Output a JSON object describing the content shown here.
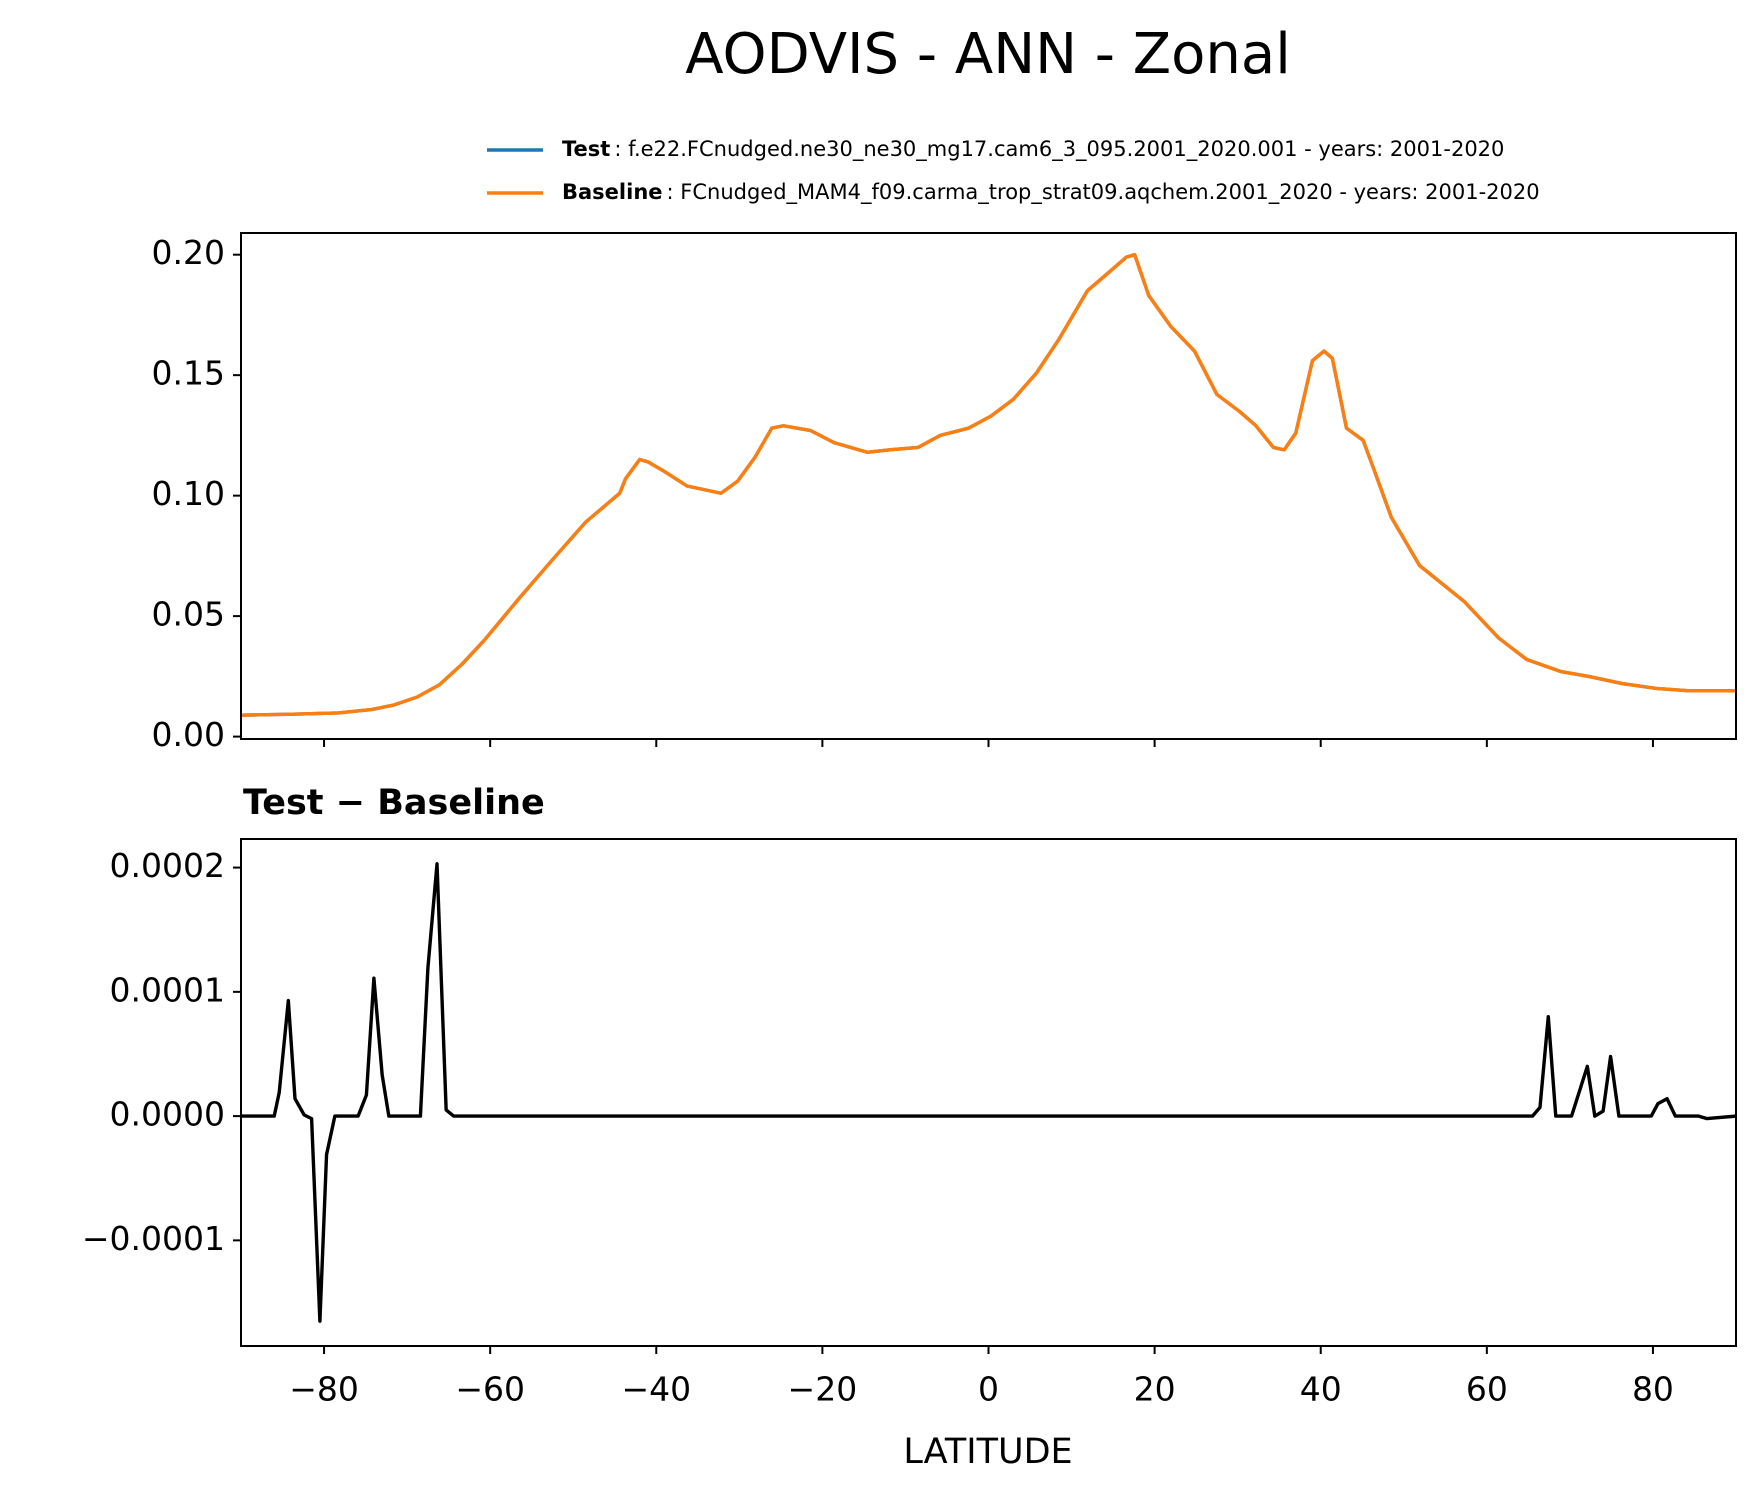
{
  "chart_data": [
    {
      "type": "line",
      "title": "AODVIS - ANN - Zonal",
      "x": [
        -90,
        -83.8,
        -78.3,
        -74.3,
        -71.6,
        -68.8,
        -66.1,
        -63.4,
        -60.7,
        -56.6,
        -52.6,
        -48.5,
        -44.4,
        -43.7,
        -42,
        -41,
        -39,
        -36.3,
        -32.2,
        -30.2,
        -28.1,
        -26.1,
        -24.7,
        -21.4,
        -18.6,
        -14.6,
        -11.9,
        -8.5,
        -5.8,
        -2.4,
        0.3,
        3,
        5.8,
        8.5,
        11.9,
        14.6,
        16.6,
        17.6,
        19.3,
        22,
        24.8,
        27.5,
        30.2,
        32.2,
        34.3,
        35.6,
        37,
        39,
        40.4,
        41.4,
        42.4,
        43.1,
        45.1,
        46.5,
        48.5,
        51.9,
        57.3,
        61.4,
        64.8,
        68.9,
        72.2,
        76.3,
        80.4,
        84.4,
        90
      ],
      "series": [
        {
          "name": "Test",
          "description": ": f.e22.FCnudged.ne30_ne30_mg17.cam6_3_095.2001_2020.001 - years: 2001-2020",
          "color": "#1f77b4",
          "values": [
            0.0089,
            0.0093,
            0.0098,
            0.0112,
            0.0131,
            0.0164,
            0.0215,
            0.03,
            0.04,
            0.057,
            0.073,
            0.089,
            0.101,
            0.107,
            0.115,
            0.114,
            0.11,
            0.104,
            0.101,
            0.106,
            0.116,
            0.128,
            0.129,
            0.127,
            0.122,
            0.118,
            0.119,
            0.12,
            0.125,
            0.128,
            0.133,
            0.14,
            0.151,
            0.165,
            0.185,
            0.193,
            0.199,
            0.2,
            0.183,
            0.17,
            0.16,
            0.142,
            0.135,
            0.129,
            0.12,
            0.119,
            0.126,
            0.156,
            0.16,
            0.157,
            0.14,
            0.128,
            0.123,
            0.11,
            0.091,
            0.071,
            0.056,
            0.041,
            0.032,
            0.027,
            0.025,
            0.022,
            0.02,
            0.019,
            0.019
          ]
        },
        {
          "name": "Baseline",
          "description": ": FCnudged_MAM4_f09.carma_trop_strat09.aqchem.2001_2020 - years: 2001-2020",
          "color": "#ff7f0e",
          "values": [
            0.0089,
            0.0093,
            0.0098,
            0.0112,
            0.0131,
            0.0164,
            0.0215,
            0.03,
            0.04,
            0.057,
            0.073,
            0.089,
            0.101,
            0.107,
            0.115,
            0.114,
            0.11,
            0.104,
            0.101,
            0.106,
            0.116,
            0.128,
            0.129,
            0.127,
            0.122,
            0.118,
            0.119,
            0.12,
            0.125,
            0.128,
            0.133,
            0.14,
            0.151,
            0.165,
            0.185,
            0.193,
            0.199,
            0.2,
            0.183,
            0.17,
            0.16,
            0.142,
            0.135,
            0.129,
            0.12,
            0.119,
            0.126,
            0.156,
            0.16,
            0.157,
            0.14,
            0.128,
            0.123,
            0.11,
            0.091,
            0.071,
            0.056,
            0.041,
            0.032,
            0.027,
            0.025,
            0.022,
            0.02,
            0.019,
            0.019
          ]
        }
      ],
      "xlim": [
        -90,
        90
      ],
      "xticks": [
        -80,
        -60,
        -40,
        -20,
        0,
        20,
        40,
        60,
        80
      ],
      "ylim": [
        -0.001,
        0.209
      ],
      "yticks": [
        {
          "value": 0,
          "label": "0.00"
        },
        0.05,
        {
          "value": 0.1,
          "label": "0.10"
        },
        0.15,
        {
          "value": 0.2,
          "label": "0.20"
        }
      ]
    },
    {
      "type": "line",
      "subtitle": "Test − Baseline",
      "xlabel": "LATITUDE",
      "color": "#000000",
      "x": [
        -90,
        -86,
        -85.4,
        -84.3,
        -83.5,
        -82.4,
        -81.5,
        -80.5,
        -79.7,
        -78.7,
        -75.9,
        -74.9,
        -74,
        -73,
        -72.2,
        -68.4,
        -67.5,
        -66.4,
        -65.3,
        -64.4,
        65.5,
        66.4,
        67.4,
        68.3,
        70.2,
        72.1,
        73,
        74,
        74.9,
        75.9,
        79.8,
        80.6,
        81.7,
        82.7,
        85.5,
        86.5,
        90
      ],
      "values": [
        0,
        0,
        1.9e-05,
        9.3e-05,
        1.4e-05,
        1e-06,
        -2e-06,
        -0.000165,
        -3.1e-05,
        0,
        0,
        1.7e-05,
        0.000111,
        3.3e-05,
        0,
        0,
        0.000119,
        0.000203,
        5e-06,
        0,
        0,
        7e-06,
        8e-05,
        0,
        0,
        4e-05,
        0,
        4e-06,
        4.8e-05,
        0,
        0,
        1e-05,
        1.4e-05,
        0,
        0,
        -2e-06,
        0
      ],
      "xlim": [
        -90,
        90
      ],
      "xticks": [
        {
          "value": -80,
          "label": "−80"
        },
        {
          "value": -60,
          "label": "−60"
        },
        {
          "value": -40,
          "label": "−40"
        },
        {
          "value": -20,
          "label": "−20"
        },
        0,
        20,
        40,
        60,
        80
      ],
      "ylim": [
        -0.000185,
        0.000223
      ],
      "yticks": [
        {
          "value": -0.0001,
          "label": "−0.0001"
        },
        {
          "value": 0,
          "label": "0.0000"
        },
        {
          "value": 0.0001,
          "label": "0.0001"
        },
        {
          "value": 0.0002,
          "label": "0.0002"
        }
      ]
    }
  ]
}
